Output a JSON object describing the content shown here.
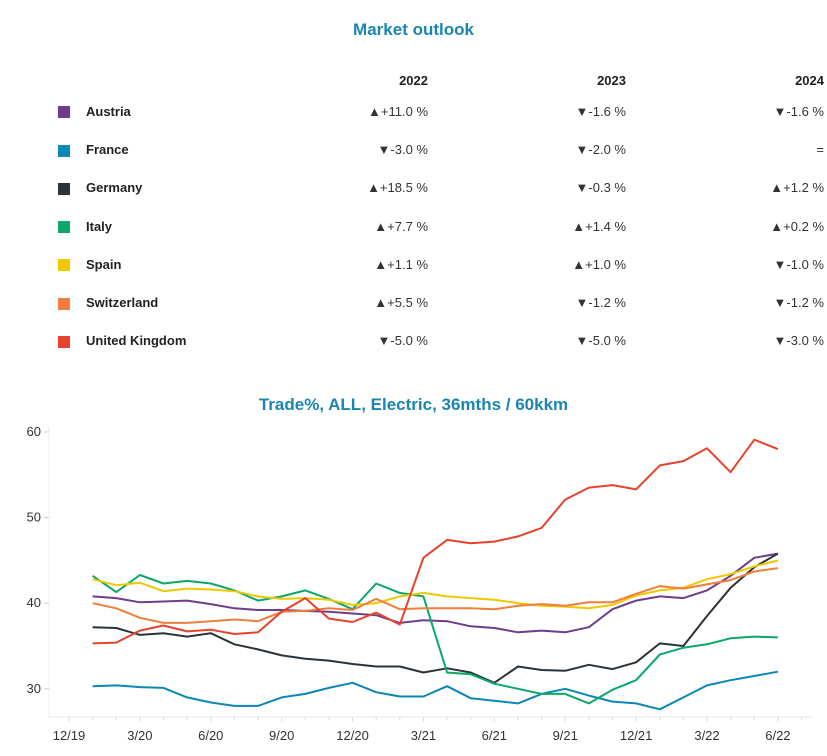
{
  "outlook": {
    "title": "Market outlook",
    "columns": [
      "2022",
      "2023",
      "2024"
    ],
    "rows": [
      {
        "country": "Austria",
        "color": "#6f3d8a",
        "values": [
          "▲+11.0 %",
          "▼-1.6 %",
          "▼-1.6 %"
        ]
      },
      {
        "country": "France",
        "color": "#0b87b5",
        "values": [
          "▼-3.0 %",
          "▼-2.0 %",
          "="
        ]
      },
      {
        "country": "Germany",
        "color": "#2b3338",
        "values": [
          "▲+18.5 %",
          "▼-0.3 %",
          "▲+1.2 %"
        ]
      },
      {
        "country": "Italy",
        "color": "#0aa86a",
        "values": [
          "▲+7.7 %",
          "▲+1.4 %",
          "▲+0.2 %"
        ]
      },
      {
        "country": "Spain",
        "color": "#f0c800",
        "values": [
          "▲+1.1 %",
          "▲+1.0 %",
          "▼-1.0 %"
        ]
      },
      {
        "country": "Switzerland",
        "color": "#f07f3c",
        "values": [
          "▲+5.5 %",
          "▼-1.2 %",
          "▼-1.2 %"
        ]
      },
      {
        "country": "United Kingdom",
        "color": "#e8412c",
        "values": [
          "▼-5.0 %",
          "▼-5.0 %",
          "▼-3.0 %"
        ]
      }
    ]
  },
  "chart_data": {
    "type": "line",
    "title": "Trade%, ALL, Electric, 36mths / 60kkm",
    "xlabel": "",
    "ylabel": "",
    "ylim": [
      27,
      61
    ],
    "yticks": [
      30,
      40,
      50,
      60
    ],
    "xtick_labels": [
      "12/19",
      "3/20",
      "6/20",
      "9/20",
      "12/20",
      "3/21",
      "6/21",
      "9/21",
      "12/21",
      "3/22",
      "6/22"
    ],
    "x": [
      "1/20",
      "2/20",
      "3/20",
      "4/20",
      "5/20",
      "6/20",
      "7/20",
      "8/20",
      "9/20",
      "10/20",
      "11/20",
      "12/20",
      "1/21",
      "2/21",
      "3/21",
      "4/21",
      "5/21",
      "6/21",
      "7/21",
      "8/21",
      "9/21",
      "10/21",
      "11/21",
      "12/21",
      "1/22",
      "2/22",
      "3/22",
      "4/22",
      "5/22",
      "6/22"
    ],
    "grid": false,
    "legend": "none",
    "series": [
      {
        "name": "Austria",
        "color": "#6f3d8a",
        "values": [
          40.8,
          40.6,
          40.1,
          40.2,
          40.3,
          39.9,
          39.4,
          39.2,
          39.2,
          39.1,
          39.0,
          38.8,
          38.6,
          37.7,
          38.0,
          37.9,
          37.3,
          37.1,
          36.6,
          36.8,
          36.6,
          37.2,
          39.3,
          40.3,
          40.8,
          40.6,
          41.5,
          43.2,
          45.3,
          45.8
        ]
      },
      {
        "name": "France",
        "color": "#0b87b5",
        "values": [
          30.3,
          30.4,
          30.2,
          30.1,
          29.0,
          28.4,
          28.0,
          28.0,
          29.0,
          29.4,
          30.1,
          30.7,
          29.6,
          29.1,
          29.1,
          30.3,
          28.9,
          28.6,
          28.3,
          29.4,
          30.0,
          29.2,
          28.5,
          28.3,
          27.6,
          29.0,
          30.4,
          31.0,
          31.5,
          32.0
        ]
      },
      {
        "name": "Germany",
        "color": "#2b3338",
        "values": [
          37.2,
          37.1,
          36.3,
          36.5,
          36.1,
          36.5,
          35.2,
          34.6,
          33.9,
          33.5,
          33.3,
          32.9,
          32.6,
          32.6,
          31.9,
          32.4,
          31.9,
          30.7,
          32.6,
          32.2,
          32.1,
          32.8,
          32.3,
          33.1,
          35.3,
          35.0,
          38.5,
          41.8,
          44.2,
          45.8
        ]
      },
      {
        "name": "Italy",
        "color": "#0aa86a",
        "values": [
          43.2,
          41.3,
          43.3,
          42.3,
          42.6,
          42.3,
          41.5,
          40.3,
          40.8,
          41.5,
          40.5,
          39.3,
          42.3,
          41.2,
          40.8,
          31.9,
          31.7,
          30.6,
          30.0,
          29.4,
          29.4,
          28.3,
          29.9,
          31.0,
          34.0,
          34.8,
          35.2,
          35.9,
          36.1,
          36.0
        ]
      },
      {
        "name": "Spain",
        "color": "#f0c800",
        "values": [
          42.8,
          42.1,
          42.4,
          41.4,
          41.7,
          41.6,
          41.4,
          40.8,
          40.5,
          40.6,
          40.4,
          39.8,
          40.0,
          40.8,
          41.2,
          40.8,
          40.6,
          40.4,
          40.0,
          39.7,
          39.6,
          39.4,
          39.8,
          40.9,
          41.5,
          41.8,
          42.8,
          43.4,
          44.3,
          45.0
        ]
      },
      {
        "name": "Switzerland",
        "color": "#f07f3c",
        "values": [
          40.0,
          39.4,
          38.3,
          37.7,
          37.7,
          37.9,
          38.1,
          37.9,
          39.0,
          39.1,
          39.4,
          39.2,
          40.5,
          39.3,
          39.4,
          39.4,
          39.4,
          39.3,
          39.7,
          39.9,
          39.7,
          40.1,
          40.1,
          41.1,
          42.0,
          41.7,
          42.2,
          42.7,
          43.7,
          44.1
        ]
      },
      {
        "name": "United Kingdom",
        "color": "#e8412c",
        "values": [
          35.3,
          35.4,
          36.8,
          37.4,
          36.7,
          36.9,
          36.4,
          36.6,
          39.0,
          40.6,
          38.2,
          37.8,
          38.9,
          37.5,
          45.3,
          47.4,
          47.0,
          47.2,
          47.8,
          48.8,
          52.1,
          53.5,
          53.8,
          53.3,
          56.1,
          56.6,
          58.1,
          55.3,
          59.1,
          58.0
        ]
      }
    ]
  }
}
